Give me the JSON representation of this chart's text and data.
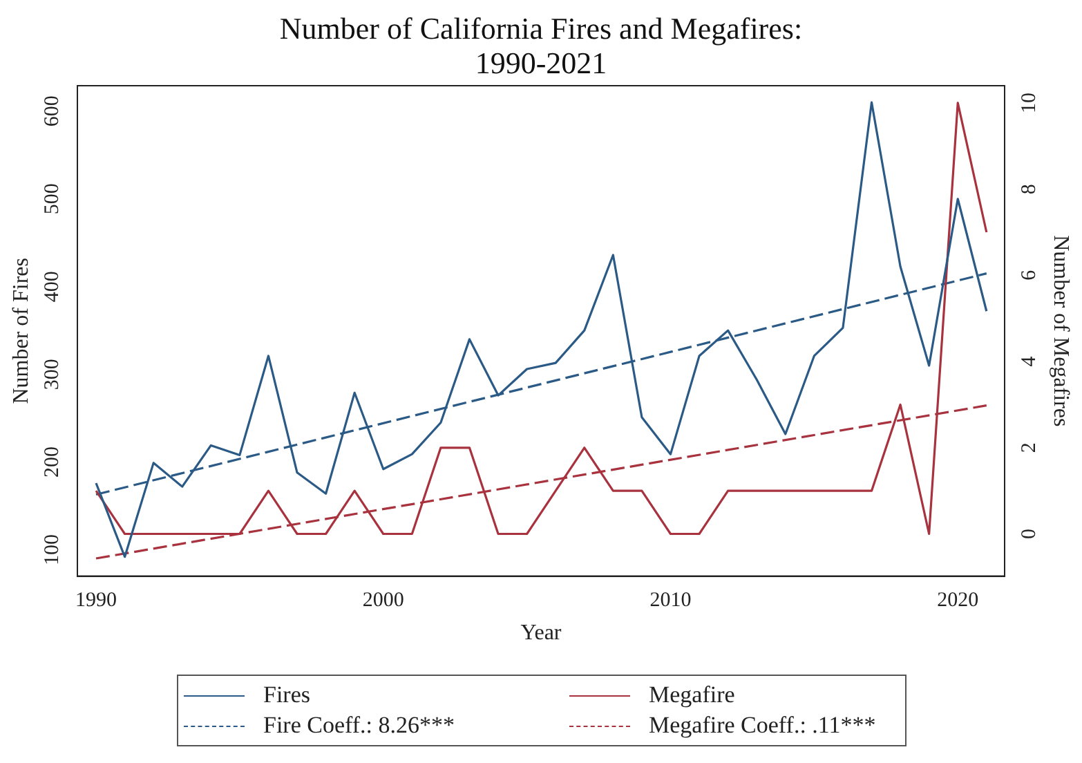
{
  "chart_data": {
    "type": "line",
    "title": "Number of California Fires and Megafires: 1990-2021",
    "xlabel": "Year",
    "ylabel": "Number of Fires",
    "y2label": "Number of Megafires",
    "x": [
      1990,
      1991,
      1992,
      1993,
      1994,
      1995,
      1996,
      1997,
      1998,
      1999,
      2000,
      2001,
      2002,
      2003,
      2004,
      2005,
      2006,
      2007,
      2008,
      2009,
      2010,
      2011,
      2012,
      2013,
      2014,
      2015,
      2016,
      2017,
      2018,
      2019,
      2020,
      2021
    ],
    "series": [
      {
        "name": "Fires",
        "color": "#2a5a85",
        "values": [
          176,
          92,
          199,
          172,
          219,
          208,
          321,
          188,
          164,
          279,
          192,
          209,
          245,
          340,
          276,
          306,
          313,
          350,
          436,
          251,
          209,
          321,
          350,
          294,
          232,
          321,
          353,
          610,
          423,
          310,
          500,
          372
        ]
      },
      {
        "name": "Megafire",
        "color": "#a8323e",
        "axis": "y2",
        "values": [
          1,
          0,
          0,
          0,
          0,
          0,
          1,
          0,
          0,
          1,
          0,
          0,
          2,
          2,
          0,
          0,
          1,
          2,
          1,
          1,
          0,
          0,
          1,
          1,
          1,
          1,
          1,
          1,
          3,
          0,
          10,
          7
        ]
      },
      {
        "name": "Fire Coeff.: 8.26***",
        "color": "#2a5a85",
        "line_style": "dashed",
        "values": [
          163,
          null,
          null,
          null,
          null,
          null,
          null,
          null,
          null,
          null,
          null,
          null,
          null,
          null,
          null,
          null,
          null,
          null,
          null,
          null,
          null,
          null,
          null,
          null,
          null,
          null,
          null,
          null,
          null,
          null,
          null,
          415
        ]
      },
      {
        "name": "Megafire Coeff.: .11***",
        "color": "#a8323e",
        "line_style": "dashed",
        "axis": "y2",
        "values": [
          -0.57,
          null,
          null,
          null,
          null,
          null,
          null,
          null,
          null,
          null,
          null,
          null,
          null,
          null,
          null,
          null,
          null,
          null,
          null,
          null,
          null,
          null,
          null,
          null,
          null,
          null,
          null,
          null,
          null,
          null,
          null,
          2.98
        ]
      }
    ],
    "xlim": [
      1989.35,
      2021.63
    ],
    "xticks": [
      1990,
      2000,
      2010,
      2020
    ],
    "ylim": [
      70,
      629
    ],
    "yticks": [
      100,
      200,
      300,
      400,
      500,
      600
    ],
    "y2lim": [
      -0.98,
      10.4
    ],
    "y2ticks": [
      0,
      2,
      4,
      6,
      8,
      10
    ],
    "grid": false,
    "legend": "bottom",
    "marker": "none"
  }
}
